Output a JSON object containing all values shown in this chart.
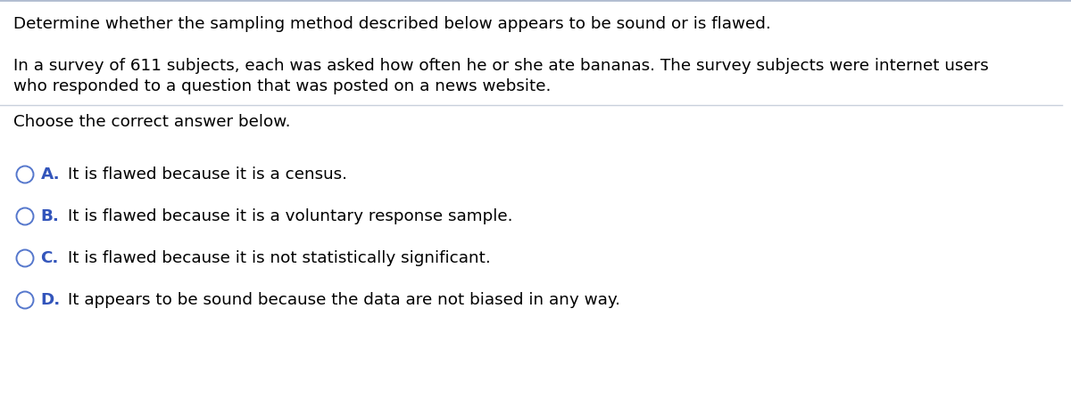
{
  "background_color": "#ffffff",
  "top_border_color": "#b0bcd0",
  "divider_color": "#c8d0dc",
  "text_color": "#000000",
  "label_color": "#3355bb",
  "circle_color": "#5577cc",
  "line1": "Determine whether the sampling method described below appears to be sound or is flawed.",
  "line2a": "In a survey of 611 subjects, each was asked how often he or she ate bananas. The survey subjects were internet users",
  "line2b": "who responded to a question that was posted on a news website.",
  "line3": "Choose the correct answer below.",
  "options": [
    {
      "label": "A.",
      "text": "It is flawed because it is a census."
    },
    {
      "label": "B.",
      "text": "It is flawed because it is a voluntary response sample."
    },
    {
      "label": "C.",
      "text": "It is flawed because it is not statistically significant."
    },
    {
      "label": "D.",
      "text": "It appears to be sound because the data are not biased in any way."
    }
  ],
  "font_size_body": 13.2,
  "font_size_options": 13.2,
  "fig_width": 12.0,
  "fig_height": 4.47,
  "dpi": 100
}
